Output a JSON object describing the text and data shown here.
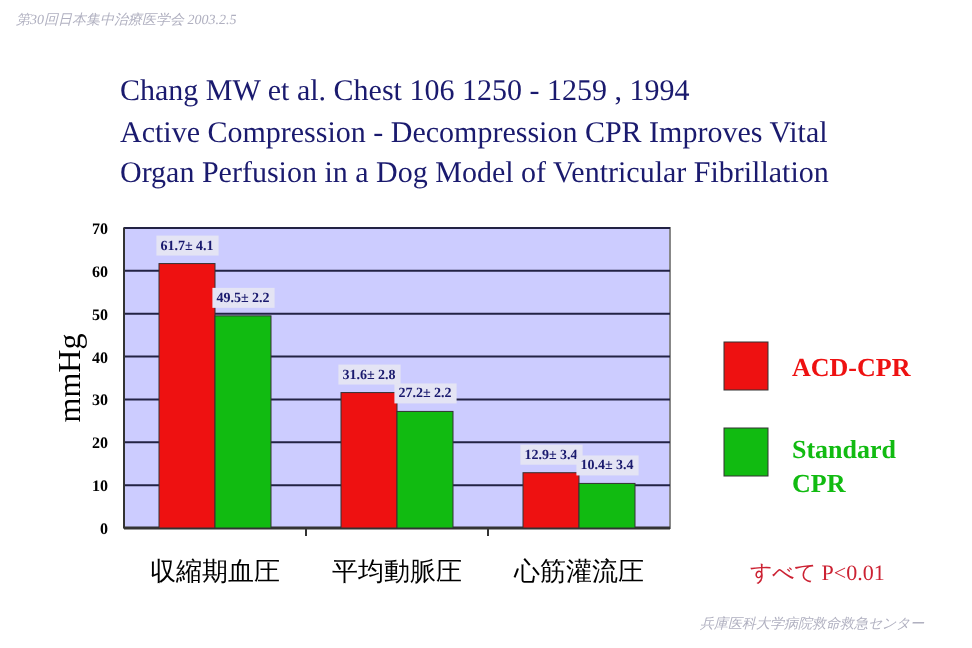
{
  "chart_data": {
    "type": "bar",
    "title": "Chang MW et al.        Chest 106  1250 - 1259 , 1994",
    "subtitle": "Active Compression - Decompression CPR Improves Vital Organ Perfusion in a Dog Model of Ventricular Fibrillation",
    "ylabel": "mmHg",
    "categories": [
      "収縮期血圧",
      "平均動脈圧",
      "心筋灌流圧"
    ],
    "series": [
      {
        "name": "ACD-CPR",
        "color": "#ee1111",
        "values": [
          61.7,
          31.6,
          12.9
        ],
        "value_labels": [
          "61.7± 4.1",
          "31.6± 2.8",
          "12.9± 3.4"
        ]
      },
      {
        "name": "Standard CPR",
        "color": "#11bb11",
        "values": [
          49.5,
          27.2,
          10.4
        ],
        "value_labels": [
          "49.5± 2.2",
          "27.2± 2.2",
          "10.4± 3.4"
        ]
      }
    ],
    "ylim": [
      0,
      70
    ],
    "yticks": [
      0,
      10,
      20,
      30,
      40,
      50,
      60,
      70
    ],
    "grid": "y",
    "legend": "right",
    "annotations": [
      "すべて P<0.01",
      "第30回日本集中治療医学会  2003.2.5",
      "兵庫医科大学病院救命救急センター"
    ]
  }
}
